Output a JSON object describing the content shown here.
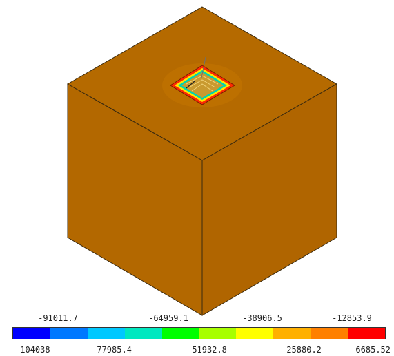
{
  "colors": {
    "solid_top": "#b56a00",
    "solid_left": "#b36800",
    "solid_right": "#b06500",
    "edge": "#3a2a10"
  },
  "legend": {
    "top_labels": [
      "-91011.7",
      "-64959.1",
      "-38906.5",
      "-12853.9"
    ],
    "bottom_labels": [
      "-104038",
      "-77985.4",
      "-51932.8",
      "-25880.2",
      "6685.52"
    ],
    "colors": [
      "#0000ff",
      "#0078ff",
      "#00c8ff",
      "#00e8c0",
      "#00ff00",
      "#a8ff00",
      "#ffff00",
      "#ffb000",
      "#ff8000",
      "#ff0000"
    ]
  }
}
